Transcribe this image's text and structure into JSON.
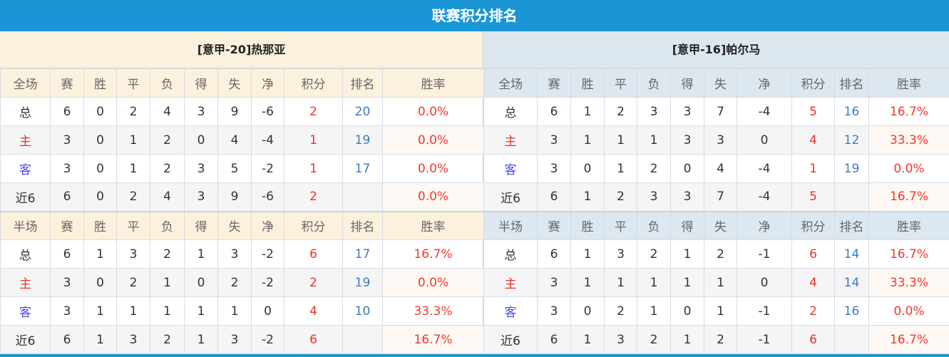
{
  "title": "联赛积分排名",
  "colors": {
    "header_bg": "#1a96d6",
    "home_header": "#fcf1dc",
    "away_header": "#dce7f0",
    "points": "#e8322c",
    "rank": "#3a7bc4",
    "rate": "#f0392b"
  },
  "teams": [
    {
      "name": "[意甲-20]热那亚",
      "sections": [
        {
          "headers": [
            "全场",
            "赛",
            "胜",
            "平",
            "负",
            "得",
            "失",
            "净",
            "积分",
            "排名",
            "胜率"
          ],
          "rows": [
            [
              "总",
              "6",
              "0",
              "2",
              "4",
              "3",
              "9",
              "-6",
              "2",
              "20",
              "0.0%"
            ],
            [
              "主",
              "3",
              "0",
              "1",
              "2",
              "0",
              "4",
              "-4",
              "1",
              "19",
              "0.0%"
            ],
            [
              "客",
              "3",
              "0",
              "1",
              "2",
              "3",
              "5",
              "-2",
              "1",
              "17",
              "0.0%"
            ],
            [
              "近6",
              "6",
              "0",
              "2",
              "4",
              "3",
              "9",
              "-6",
              "2",
              "",
              "0.0%"
            ]
          ]
        },
        {
          "headers": [
            "半场",
            "赛",
            "胜",
            "平",
            "负",
            "得",
            "失",
            "净",
            "积分",
            "排名",
            "胜率"
          ],
          "rows": [
            [
              "总",
              "6",
              "1",
              "3",
              "2",
              "1",
              "3",
              "-2",
              "6",
              "17",
              "16.7%"
            ],
            [
              "主",
              "3",
              "0",
              "2",
              "1",
              "0",
              "2",
              "-2",
              "2",
              "19",
              "0.0%"
            ],
            [
              "客",
              "3",
              "1",
              "1",
              "1",
              "1",
              "1",
              "0",
              "4",
              "10",
              "33.3%"
            ],
            [
              "近6",
              "6",
              "1",
              "3",
              "2",
              "1",
              "3",
              "-2",
              "6",
              "",
              "16.7%"
            ]
          ]
        }
      ]
    },
    {
      "name": "[意甲-16]帕尔马",
      "sections": [
        {
          "headers": [
            "全场",
            "赛",
            "胜",
            "平",
            "负",
            "得",
            "失",
            "净",
            "积分",
            "排名",
            "胜率"
          ],
          "rows": [
            [
              "总",
              "6",
              "1",
              "2",
              "3",
              "3",
              "7",
              "-4",
              "5",
              "16",
              "16.7%"
            ],
            [
              "主",
              "3",
              "1",
              "1",
              "1",
              "3",
              "3",
              "0",
              "4",
              "12",
              "33.3%"
            ],
            [
              "客",
              "3",
              "0",
              "1",
              "2",
              "0",
              "4",
              "-4",
              "1",
              "19",
              "0.0%"
            ],
            [
              "近6",
              "6",
              "1",
              "2",
              "3",
              "3",
              "7",
              "-4",
              "5",
              "",
              "16.7%"
            ]
          ]
        },
        {
          "headers": [
            "半场",
            "赛",
            "胜",
            "平",
            "负",
            "得",
            "失",
            "净",
            "积分",
            "排名",
            "胜率"
          ],
          "rows": [
            [
              "总",
              "6",
              "1",
              "3",
              "2",
              "1",
              "2",
              "-1",
              "6",
              "14",
              "16.7%"
            ],
            [
              "主",
              "3",
              "1",
              "1",
              "1",
              "1",
              "1",
              "0",
              "4",
              "14",
              "33.3%"
            ],
            [
              "客",
              "3",
              "0",
              "2",
              "1",
              "0",
              "1",
              "-1",
              "2",
              "16",
              "0.0%"
            ],
            [
              "近6",
              "6",
              "1",
              "3",
              "2",
              "1",
              "2",
              "-1",
              "6",
              "",
              "16.7%"
            ]
          ]
        }
      ]
    }
  ]
}
